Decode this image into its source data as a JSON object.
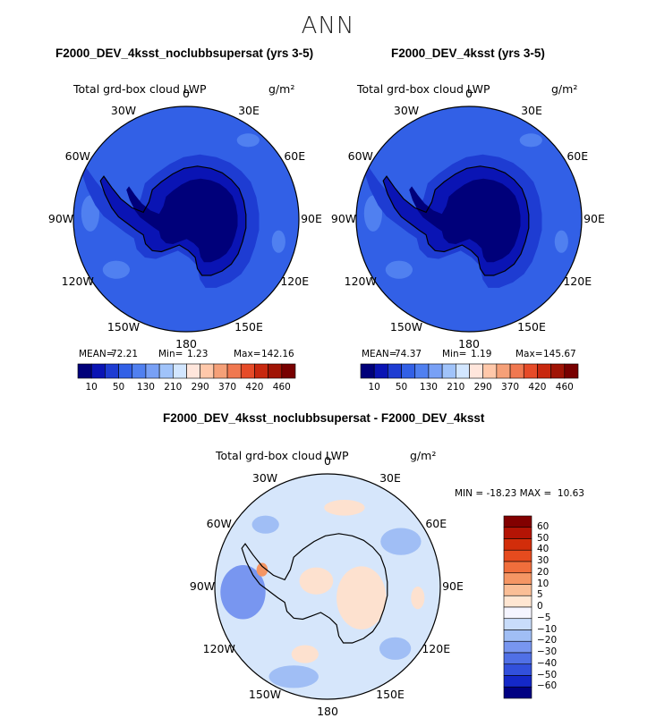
{
  "chart_data": [
    {
      "type": "heatmap",
      "projection": "south-polar-stereographic",
      "title": "F2000_DEV_4ksst_noclubbsupersat (yrs 3-5)",
      "variable_label": "Total grd-box cloud LWP",
      "units": "g/m²",
      "lon_labels": [
        "0",
        "30E",
        "60E",
        "90E",
        "120E",
        "150E",
        "180",
        "150W",
        "120W",
        "90W",
        "60W",
        "30W"
      ],
      "stats": {
        "mean_label": "MEAN=",
        "mean": "72.21",
        "min_label": "Min=",
        "min": "1.23",
        "max_label": "Max=",
        "max": "142.16"
      },
      "colorbar": {
        "orientation": "horizontal",
        "tick_labels": [
          "10",
          "50",
          "130",
          "210",
          "290",
          "370",
          "420",
          "460"
        ],
        "colors": [
          "#00007a",
          "#0a14b4",
          "#1e3cd2",
          "#3260e6",
          "#5080f0",
          "#78a0f5",
          "#a0c3fa",
          "#d2e6ff",
          "#ffe6dc",
          "#ffc8aa",
          "#f5a078",
          "#f07850",
          "#e64b28",
          "#c8280f",
          "#a01405",
          "#780000"
        ]
      }
    },
    {
      "type": "heatmap",
      "projection": "south-polar-stereographic",
      "title": "F2000_DEV_4ksst (yrs 3-5)",
      "variable_label": "Total grd-box cloud LWP",
      "units": "g/m²",
      "lon_labels": [
        "0",
        "30E",
        "60E",
        "90E",
        "120E",
        "150E",
        "180",
        "150W",
        "120W",
        "90W",
        "60W",
        "30W"
      ],
      "stats": {
        "mean_label": "MEAN=",
        "mean": "74.37",
        "min_label": "Min=",
        "min": "1.19",
        "max_label": "Max=",
        "max": "145.67"
      },
      "colorbar": {
        "orientation": "horizontal",
        "tick_labels": [
          "10",
          "50",
          "130",
          "210",
          "290",
          "370",
          "420",
          "460"
        ],
        "colors": [
          "#00007a",
          "#0a14b4",
          "#1e3cd2",
          "#3260e6",
          "#5080f0",
          "#78a0f5",
          "#a0c3fa",
          "#d2e6ff",
          "#ffe6dc",
          "#ffc8aa",
          "#f5a078",
          "#f07850",
          "#e64b28",
          "#c8280f",
          "#a01405",
          "#780000"
        ]
      }
    },
    {
      "type": "heatmap",
      "projection": "south-polar-stereographic",
      "title": "F2000_DEV_4ksst_noclubbsupersat - F2000_DEV_4ksst",
      "variable_label": "Total grd-box cloud LWP",
      "units": "g/m²",
      "lon_labels": [
        "0",
        "30E",
        "60E",
        "90E",
        "120E",
        "150E",
        "180",
        "150W",
        "120W",
        "90W",
        "60W",
        "30W"
      ],
      "minmax_text": "MIN = -18.23 MAX =  10.63",
      "colorbar": {
        "orientation": "vertical",
        "tick_labels": [
          "60",
          "50",
          "40",
          "30",
          "20",
          "10",
          "5",
          "0",
          "−5",
          "−10",
          "−20",
          "−30",
          "−40",
          "−50",
          "−60"
        ],
        "colors": [
          "#820000",
          "#b41405",
          "#d22d0a",
          "#e64b1e",
          "#f06e3c",
          "#f59664",
          "#fabe96",
          "#ffe6d2",
          "#f5f5ff",
          "#c8dcfa",
          "#a0bef5",
          "#7896f0",
          "#5070e6",
          "#3250dc",
          "#1428c8",
          "#000082"
        ]
      }
    }
  ],
  "page": {
    "season": "ANN"
  }
}
